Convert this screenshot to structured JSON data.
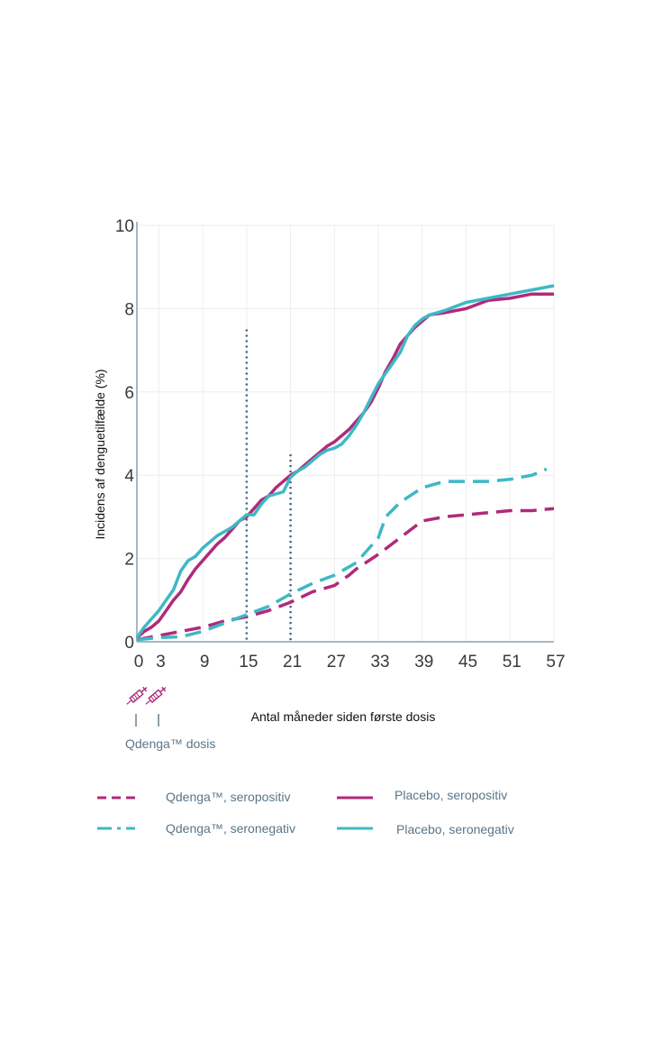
{
  "chart_data": {
    "type": "line",
    "ylabel": "Incidens af denguetilfælde (%)",
    "xlabel": "Antal måneder siden første dosis",
    "xlim": [
      0,
      57
    ],
    "ylim": [
      0,
      10
    ],
    "x_ticks": [
      "0",
      "3",
      "9",
      "15",
      "21",
      "27",
      "33",
      "39",
      "45",
      "51",
      "57"
    ],
    "x_tick_values": [
      0,
      3,
      9,
      15,
      21,
      27,
      33,
      39,
      45,
      51,
      57
    ],
    "y_ticks": [
      "0",
      "2",
      "4",
      "6",
      "8",
      "10"
    ],
    "y_tick_values": [
      0,
      2,
      4,
      6,
      8,
      10
    ],
    "grid": true,
    "dose_label": "Qdenga™ dosis",
    "dose_months": [
      0,
      3
    ],
    "reference_lines": [
      {
        "x": 15,
        "y_top": 7.5
      },
      {
        "x": 21,
        "y_top": 4.5
      }
    ],
    "series": [
      {
        "name": "Qdenga™, seropositiv",
        "color": "#b02a7a",
        "style": "dashed",
        "x": [
          0,
          3,
          6,
          9,
          12,
          15,
          18,
          21,
          24,
          27,
          29,
          30,
          33,
          36,
          39,
          42,
          45,
          48,
          51,
          54,
          57
        ],
        "y": [
          0.05,
          0.15,
          0.25,
          0.35,
          0.5,
          0.6,
          0.75,
          0.95,
          1.2,
          1.35,
          1.6,
          1.75,
          2.1,
          2.5,
          2.9,
          3.0,
          3.05,
          3.1,
          3.15,
          3.15,
          3.2
        ]
      },
      {
        "name": "Qdenga™, seronegativ",
        "color": "#3eb8c6",
        "style": "dashed",
        "x": [
          0,
          3,
          6,
          9,
          12,
          15,
          18,
          21,
          24,
          27,
          30,
          33,
          34,
          36,
          39,
          42,
          45,
          48,
          51,
          54,
          56
        ],
        "y": [
          0.05,
          0.1,
          0.12,
          0.25,
          0.45,
          0.65,
          0.85,
          1.15,
          1.4,
          1.6,
          1.9,
          2.5,
          3.0,
          3.35,
          3.7,
          3.85,
          3.85,
          3.85,
          3.9,
          4.0,
          4.15
        ]
      },
      {
        "name": "Placebo, seropositiv",
        "color": "#b02a7a",
        "style": "solid",
        "x": [
          0,
          1,
          2,
          3,
          4,
          5,
          6,
          7,
          8,
          9,
          10,
          11,
          12,
          13,
          14,
          15,
          16,
          17,
          18,
          19,
          20,
          21,
          22,
          23,
          24,
          25,
          26,
          27,
          28,
          29,
          30,
          31,
          32,
          33,
          34,
          35,
          36,
          37,
          38,
          39,
          40,
          42,
          45,
          48,
          51,
          54,
          57
        ],
        "y": [
          0.1,
          0.25,
          0.35,
          0.5,
          0.75,
          1.0,
          1.2,
          1.5,
          1.75,
          1.95,
          2.15,
          2.35,
          2.5,
          2.7,
          2.9,
          3.0,
          3.2,
          3.4,
          3.5,
          3.7,
          3.85,
          4.0,
          4.1,
          4.25,
          4.4,
          4.55,
          4.7,
          4.8,
          4.95,
          5.1,
          5.3,
          5.5,
          5.75,
          6.1,
          6.5,
          6.8,
          7.15,
          7.35,
          7.55,
          7.7,
          7.85,
          7.9,
          8.0,
          8.2,
          8.25,
          8.35,
          8.35
        ]
      },
      {
        "name": "Placebo, seronegativ",
        "color": "#3eb8c6",
        "style": "solid",
        "x": [
          0,
          1,
          2,
          3,
          4,
          5,
          6,
          7,
          8,
          9,
          10,
          11,
          12,
          13,
          14,
          15,
          16,
          17,
          18,
          19,
          20,
          21,
          22,
          23,
          24,
          25,
          26,
          27,
          28,
          29,
          30,
          31,
          32,
          33,
          34,
          35,
          36,
          37,
          38,
          39,
          40,
          42,
          45,
          48,
          51,
          54,
          57
        ],
        "y": [
          0.1,
          0.35,
          0.55,
          0.75,
          1.0,
          1.25,
          1.7,
          1.95,
          2.05,
          2.25,
          2.4,
          2.55,
          2.65,
          2.75,
          2.9,
          3.05,
          3.05,
          3.3,
          3.5,
          3.55,
          3.6,
          3.95,
          4.1,
          4.2,
          4.35,
          4.5,
          4.6,
          4.65,
          4.75,
          4.95,
          5.2,
          5.5,
          5.85,
          6.2,
          6.45,
          6.7,
          6.95,
          7.35,
          7.6,
          7.75,
          7.85,
          7.95,
          8.15,
          8.25,
          8.35,
          8.45,
          8.55
        ]
      }
    ]
  },
  "legend": [
    {
      "label": "Qdenga™, seropositiv",
      "color": "#b02a7a",
      "style": "dashed"
    },
    {
      "label": "Placebo, seropositiv",
      "color": "#b02a7a",
      "style": "solid"
    },
    {
      "label": "Qdenga™, seronegativ",
      "color": "#3eb8c6",
      "style": "dashed"
    },
    {
      "label": "Placebo, seronegativ",
      "color": "#3eb8c6",
      "style": "solid"
    }
  ],
  "icons": [
    "syringe-icon",
    "syringe-icon"
  ]
}
